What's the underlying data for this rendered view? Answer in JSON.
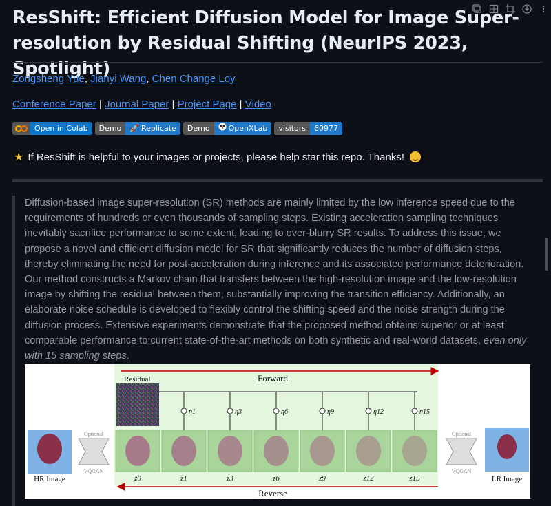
{
  "title": "ResShift: Efficient Diffusion Model for Image Super-resolution by Residual Shifting (NeurIPS 2023, Spotlight)",
  "authors": [
    {
      "name": "Zongsheng Yue",
      "sep": ", "
    },
    {
      "name": "Jianyi Wang",
      "sep": ", "
    },
    {
      "name": "Chen Change Loy",
      "sep": ""
    }
  ],
  "links": [
    {
      "label": "Conference Paper",
      "sep": " | "
    },
    {
      "label": "Journal Paper",
      "sep": " | "
    },
    {
      "label": "Project Page",
      "sep": " | "
    },
    {
      "label": "Video",
      "sep": ""
    }
  ],
  "badges": {
    "colab": {
      "right": "Open in Colab",
      "icon": "colab-icon"
    },
    "replicate": {
      "left": "Demo",
      "right": "Replicate",
      "icon": "rocket-icon"
    },
    "openxlab": {
      "left": "Demo",
      "right": "OpenXLab",
      "icon": "panda-icon"
    },
    "visitors": {
      "left": "visitors",
      "right": "60977"
    }
  },
  "star_message": "If ResShift is helpful to your images or projects, please help star this repo. Thanks!",
  "abstract": {
    "text": "Diffusion-based image super-resolution (SR) methods are mainly limited by the low inference speed due to the requirements of hundreds or even thousands of sampling steps. Existing acceleration sampling techniques inevitably sacrifice performance to some extent, leading to over-blurry SR results. To address this issue, we propose a novel and efficient diffusion model for SR that significantly reduces the number of diffusion steps, thereby eliminating the need for post-acceleration during inference and its associated performance deterioration. Our method constructs a Markov chain that transfers between the high-resolution image and the low-resolution image by shifting the residual between them, substantially improving the transition efficiency. Additionally, an elaborate noise schedule is developed to flexibly control the shifting speed and the noise strength during the diffusion process. Extensive experiments demonstrate that the proposed method obtains superior or at least comparable performance to current state-of-the-art methods on both synthetic and real-world datasets, ",
    "emphasis": "even only with 15 sampling steps",
    "end": "."
  },
  "figure": {
    "forward_label": "Forward",
    "reverse_label": "Reverse",
    "residual_label": "Residual",
    "hr_label": "HR Image",
    "lr_label": "LR Image",
    "optional_label": "Optional",
    "vqgan_label": "VQGAN",
    "eta_labels": [
      "η1",
      "η3",
      "η6",
      "η9",
      "η12",
      "η15"
    ],
    "z_labels": [
      "z0",
      "z1",
      "z3",
      "z6",
      "z9",
      "z12",
      "z15"
    ],
    "colors": {
      "arrow": "#c00000",
      "panel": "#e6f7e0",
      "frame": "#8ac47a",
      "sky": "#7fb3e6",
      "balloon": "#8a2f4a"
    }
  },
  "toolbar_icons": [
    "copy-icon",
    "grid-icon",
    "crop-icon",
    "download-icon",
    "more-icon"
  ]
}
